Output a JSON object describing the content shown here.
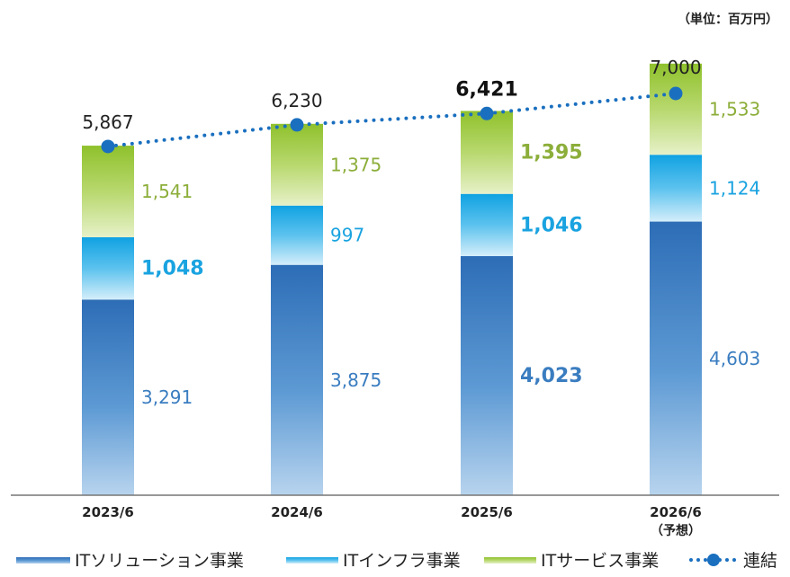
{
  "unit_label": "（単位：百万円）",
  "chart_data": {
    "type": "bar",
    "stacked": true,
    "categories": [
      "2023/6",
      "2024/6",
      "2025/6",
      "2026/6"
    ],
    "category_sublabels": [
      "",
      "",
      "",
      "（予想）"
    ],
    "series": [
      {
        "name": "ITソリューション事業",
        "values": [
          3291,
          3875,
          4023,
          4603
        ],
        "color": "#2f6db5"
      },
      {
        "name": "ITインフラ事業",
        "values": [
          1048,
          997,
          1046,
          1124
        ],
        "color": "#1aa3e0"
      },
      {
        "name": "ITサービス事業",
        "values": [
          1541,
          1375,
          1395,
          1533
        ],
        "color": "#8dbf2e"
      }
    ],
    "line": {
      "name": "連結",
      "values": [
        5867,
        6230,
        6421,
        7000
      ],
      "color": "#1a6fbf"
    },
    "value_labels": {
      "ITソリューション事業": [
        "3,291",
        "3,875",
        "4,023",
        "4,603"
      ],
      "ITインフラ事業": [
        "1,048",
        "997",
        "1,046",
        "1,124"
      ],
      "ITサービス事業": [
        "1,541",
        "1,375",
        "1,395",
        "1,533"
      ],
      "連結": [
        "5,867",
        "6,230",
        "6,421",
        "7,000"
      ]
    },
    "bold_labels": {
      "ITソリューション事業": [
        false,
        false,
        true,
        false
      ],
      "ITインフラ事業": [
        true,
        false,
        true,
        false
      ],
      "ITサービス事業": [
        false,
        false,
        true,
        false
      ],
      "連結": [
        false,
        false,
        true,
        false
      ]
    },
    "label_colors": {
      "ITソリューション事業": "#3a7dc0",
      "ITインフラ事業": "#1aa3e0",
      "ITサービス事業": "#8cae3a"
    },
    "ylim": [
      0,
      7000
    ],
    "grid": false,
    "legend_position": "bottom"
  }
}
